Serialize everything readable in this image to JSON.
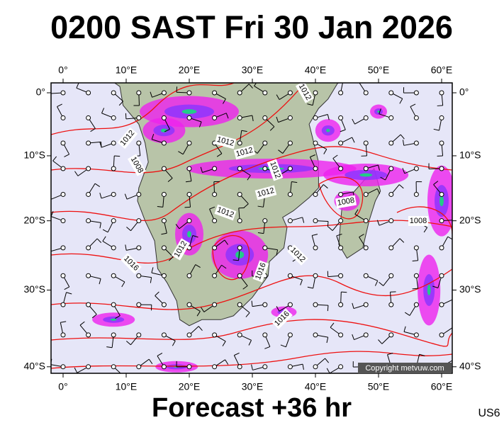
{
  "header": {
    "title": "0200 SAST Fri 30 Jan 2026"
  },
  "axes": {
    "lon_labels": [
      "0°",
      "10°E",
      "20°E",
      "30°E",
      "40°E",
      "50°E",
      "60°E"
    ],
    "lat_labels": [
      "0°",
      "10°S",
      "20°S",
      "30°S",
      "40°S"
    ]
  },
  "isobars": {
    "labels": [
      "1012",
      "1012",
      "1008",
      "1012",
      "1012",
      "1012",
      "1012",
      "1012",
      "1008",
      "1008",
      "1012",
      "1016",
      "1012",
      "1016",
      "1016"
    ]
  },
  "copyright": "Copyright metvuw.com",
  "footer": {
    "forecast": "Forecast +36 hr",
    "code": "US6"
  }
}
